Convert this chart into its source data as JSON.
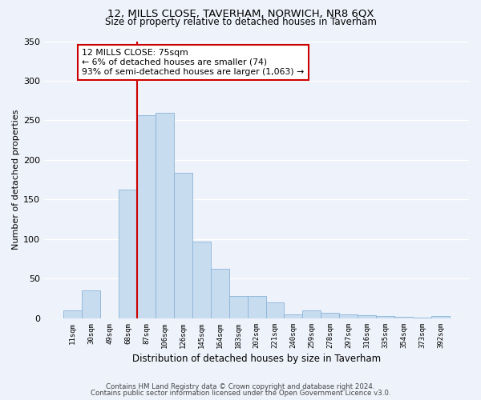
{
  "title1": "12, MILLS CLOSE, TAVERHAM, NORWICH, NR8 6QX",
  "title2": "Size of property relative to detached houses in Taverham",
  "xlabel": "Distribution of detached houses by size in Taverham",
  "ylabel": "Number of detached properties",
  "categories": [
    "11sqm",
    "30sqm",
    "49sqm",
    "68sqm",
    "87sqm",
    "106sqm",
    "126sqm",
    "145sqm",
    "164sqm",
    "183sqm",
    "202sqm",
    "221sqm",
    "240sqm",
    "259sqm",
    "278sqm",
    "297sqm",
    "316sqm",
    "335sqm",
    "354sqm",
    "373sqm",
    "392sqm"
  ],
  "values": [
    10,
    35,
    0,
    163,
    257,
    260,
    184,
    97,
    63,
    28,
    28,
    20,
    5,
    10,
    7,
    5,
    4,
    3,
    2,
    1,
    3
  ],
  "bar_color": "#c8dcf0",
  "bar_edge_color": "#8ab4d8",
  "vline_x": 3.5,
  "vline_color": "#cc0000",
  "annotation_text": "12 MILLS CLOSE: 75sqm\n← 6% of detached houses are smaller (74)\n93% of semi-detached houses are larger (1,063) →",
  "annotation_box_color": "#ffffff",
  "annotation_box_edge": "#cc0000",
  "ylim": [
    0,
    350
  ],
  "yticks": [
    0,
    50,
    100,
    150,
    200,
    250,
    300,
    350
  ],
  "background_color": "#eef2fa",
  "grid_color": "#ffffff",
  "title1_fontsize": 9.5,
  "title2_fontsize": 8.5,
  "footer1": "Contains HM Land Registry data © Crown copyright and database right 2024.",
  "footer2": "Contains public sector information licensed under the Open Government Licence v3.0."
}
